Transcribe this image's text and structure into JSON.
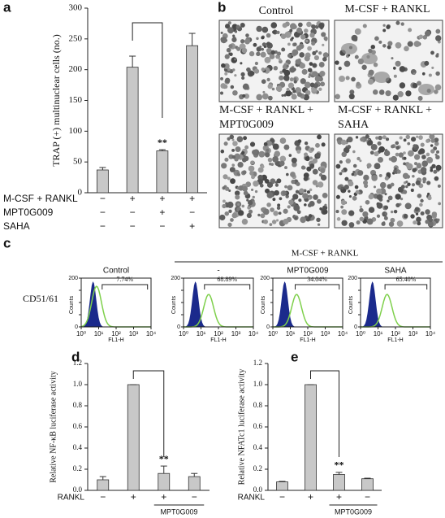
{
  "panel_labels": [
    "a",
    "b",
    "c",
    "d",
    "e"
  ],
  "chart_data": [
    {
      "type": "bar",
      "ylabel": "TRAP (+) multinuclear cells (no.)",
      "color": "#c8c8c8",
      "values": [
        37,
        204,
        68,
        239
      ],
      "errors": [
        4,
        18,
        2,
        20
      ],
      "annotations": [
        null,
        null,
        "**",
        null
      ],
      "ylim": [
        0,
        300
      ],
      "yticks": [
        0,
        50,
        100,
        150,
        200,
        250,
        300
      ],
      "conditions": [
        {
          "label": "M-CSF + RANKL",
          "signs": [
            "−",
            "+",
            "+",
            "+"
          ]
        },
        {
          "label": "MPT0G009",
          "signs": [
            "−",
            "−",
            "+",
            "−"
          ]
        },
        {
          "label": "SAHA",
          "signs": [
            "−",
            "−",
            "−",
            "+"
          ]
        }
      ]
    },
    {
      "type": "bar",
      "ylabel": "Relative NF-κB luciferase activity",
      "color": "#c8c8c8",
      "values": [
        0.1,
        1.0,
        0.16,
        0.13
      ],
      "errors": [
        0.03,
        0,
        0.07,
        0.03
      ],
      "annotations": [
        null,
        null,
        "**",
        null
      ],
      "ylim": [
        0,
        1.2
      ],
      "yticks": [
        {
          "value": 0,
          "label": "0.0"
        },
        0.2,
        0.4,
        0.6,
        0.8,
        {
          "value": 1,
          "label": "1.0"
        },
        1.2
      ],
      "conditions": [
        {
          "label": "RANKL",
          "signs": [
            "−",
            "+",
            "+",
            "−"
          ]
        }
      ],
      "group_label": "MPT0G009"
    },
    {
      "type": "bar",
      "ylabel": "Relative NFATc1 luciferase activity",
      "color": "#c8c8c8",
      "values": [
        0.08,
        1.0,
        0.15,
        0.11
      ],
      "errors": [
        0.005,
        0,
        0.02,
        0.005
      ],
      "annotations": [
        null,
        null,
        "**",
        null
      ],
      "ylim": [
        0,
        1.2
      ],
      "yticks": [
        {
          "value": 0,
          "label": "0.0"
        },
        0.2,
        0.4,
        0.6,
        0.8,
        {
          "value": 1,
          "label": "1.0"
        },
        1.2
      ],
      "conditions": [
        {
          "label": "RANKL",
          "signs": [
            "−",
            "+",
            "+",
            "−"
          ]
        }
      ],
      "group_label": "MPT0G009"
    }
  ],
  "micrographs": [
    {
      "caption": [
        "Control"
      ]
    },
    {
      "caption": [
        "M-CSF + RANKL"
      ]
    },
    {
      "caption": [
        "M-CSF + RANKL +",
        "MPT0G009"
      ]
    },
    {
      "caption": [
        "M-CSF + RANKL +",
        "SAHA"
      ]
    }
  ],
  "flow": {
    "group_title": "M-CSF + RANKL",
    "row_label": "CD51/61",
    "ylabel": "Counts",
    "xlabel": "FL1-H",
    "ylim": [
      0,
      200
    ],
    "yticks": [
      0,
      50,
      100,
      150,
      200
    ],
    "xlim": [
      0,
      4
    ],
    "xticks": [
      {
        "value": 0,
        "label": "10⁰"
      },
      {
        "value": 1,
        "label": "10¹"
      },
      {
        "value": 2,
        "label": "10²"
      },
      {
        "value": 3,
        "label": "10³"
      },
      {
        "value": 4,
        "label": "10⁴"
      }
    ],
    "plots": [
      {
        "title": "Control",
        "gate": "7.74%"
      },
      {
        "title": "-",
        "gate": "68.89%"
      },
      {
        "title": "MPT0G009",
        "gate": "34.04%"
      },
      {
        "title": "SAHA",
        "gate": "65.40%"
      }
    ]
  }
}
